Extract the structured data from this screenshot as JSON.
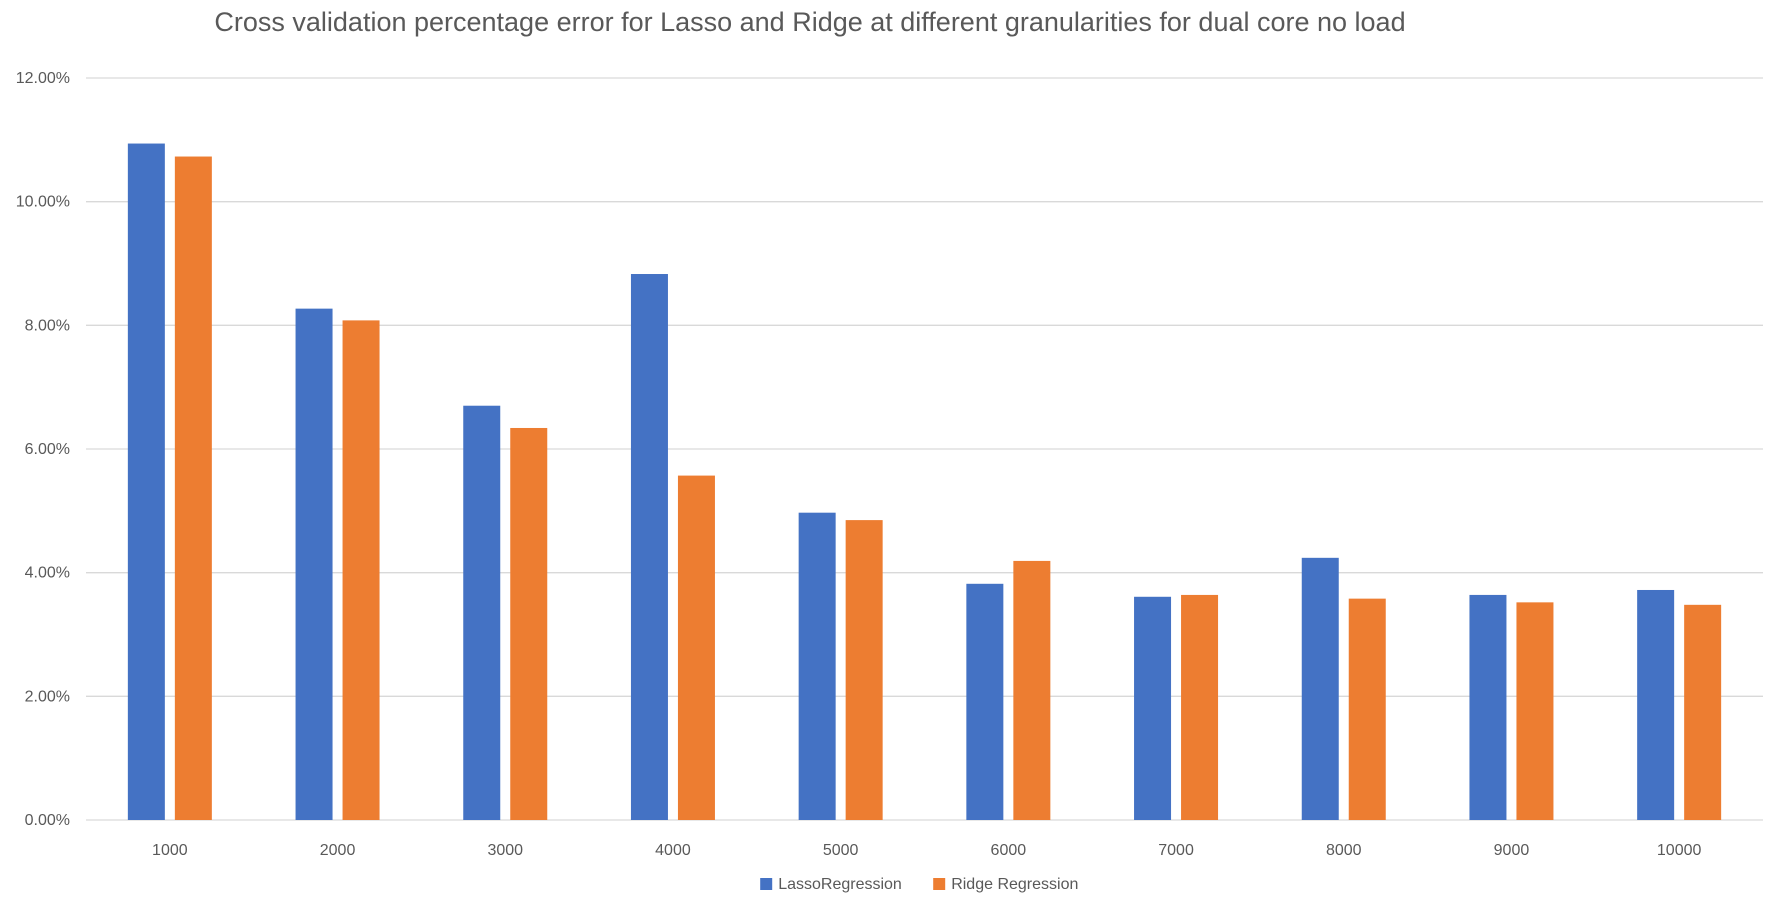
{
  "chart_data": {
    "type": "bar",
    "title": "Cross validation percentage error for Lasso and Ridge at different granularities for dual core no load",
    "xlabel": "",
    "ylabel": "",
    "categories": [
      "1000",
      "2000",
      "3000",
      "4000",
      "5000",
      "6000",
      "7000",
      "8000",
      "9000",
      "10000"
    ],
    "series": [
      {
        "name": "LassoRegression",
        "color": "#4472c4",
        "values": [
          10.94,
          8.27,
          6.7,
          8.83,
          4.97,
          3.82,
          3.61,
          4.24,
          3.64,
          3.72
        ]
      },
      {
        "name": "Ridge Regression",
        "color": "#ed7d31",
        "values": [
          10.73,
          8.08,
          6.34,
          5.57,
          4.85,
          4.19,
          3.64,
          3.58,
          3.52,
          3.48
        ]
      }
    ],
    "ylim": [
      0,
      12
    ],
    "yticks": [
      "0.00%",
      "2.00%",
      "4.00%",
      "6.00%",
      "8.00%",
      "10.00%",
      "12.00%"
    ],
    "grid": true,
    "legend_position": "bottom"
  }
}
